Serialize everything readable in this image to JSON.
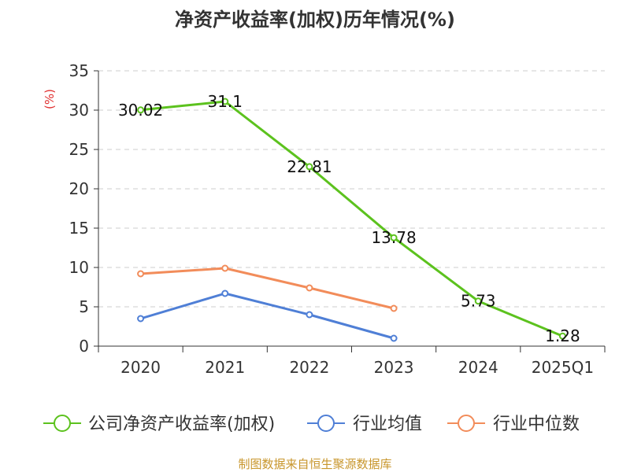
{
  "chart_data": {
    "type": "line",
    "title": "净资产收益率(加权)历年情况(%)",
    "ylabel": "(%)",
    "xlabel": "",
    "categories": [
      "2020",
      "2021",
      "2022",
      "2023",
      "2024",
      "2025Q1"
    ],
    "ylim": [
      0,
      35
    ],
    "yticks": [
      0,
      5,
      10,
      15,
      20,
      25,
      30,
      35
    ],
    "grid": true,
    "legend_position": "bottom",
    "series": [
      {
        "name": "公司净资产收益率(加权)",
        "color": "#5cc21e",
        "values": [
          30.02,
          31.1,
          22.81,
          13.78,
          5.73,
          1.28
        ],
        "labels": [
          "30.02",
          "31.1",
          "22.81",
          "13.78",
          "5.73",
          "1.28"
        ]
      },
      {
        "name": "行业均值",
        "color": "#4f7fd6",
        "values": [
          3.5,
          6.7,
          4.0,
          1.0,
          null,
          null
        ]
      },
      {
        "name": "行业中位数",
        "color": "#f28c5a",
        "values": [
          9.2,
          9.9,
          7.4,
          4.8,
          null,
          null
        ]
      }
    ]
  },
  "source": "制图数据来自恒生聚源数据库"
}
